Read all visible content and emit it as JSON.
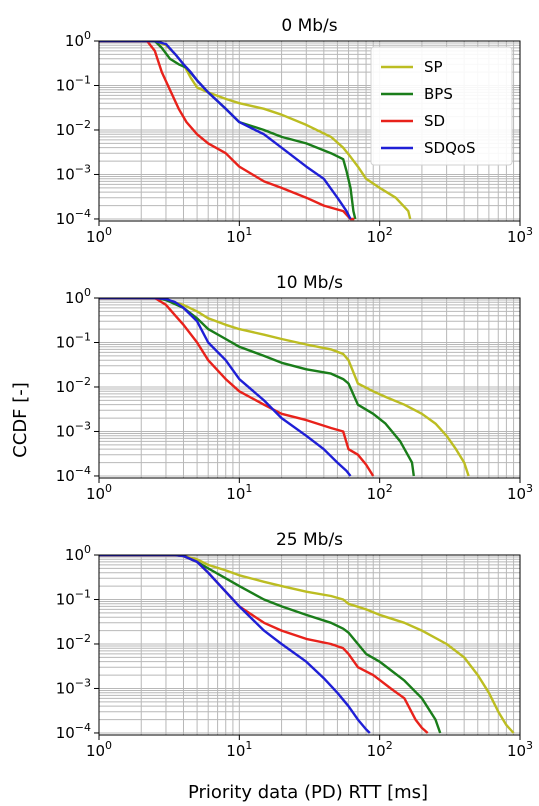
{
  "figure": {
    "ylabel": "CCDF [-]",
    "xlabel": "Priority data (PD) RTT [ms]"
  },
  "colors": {
    "SP": "#bcbd22",
    "BPS": "#1a7d1a",
    "SD": "#e8221b",
    "SDQoS": "#1f1fd6"
  },
  "chart_data": [
    {
      "type": "line",
      "title": "0 Mb/s",
      "xscale": "log",
      "yscale": "log",
      "xlim": [
        1,
        1000
      ],
      "ylim": [
        9e-05,
        1
      ],
      "grid": true,
      "legend_position": "top-right",
      "x_ticks": [
        "10^0",
        "10^1",
        "10^2",
        "10^3"
      ],
      "y_ticks": [
        "10^0",
        "10^-1",
        "10^-2",
        "10^-3",
        "10^-4"
      ],
      "series": [
        {
          "name": "SP",
          "x": [
            1,
            2.5,
            3.0,
            3.5,
            4.0,
            4.5,
            5.0,
            6,
            8,
            10,
            15,
            20,
            30,
            45,
            55,
            62,
            70,
            80,
            100,
            130,
            160,
            165
          ],
          "y": [
            1,
            1,
            0.8,
            0.5,
            0.3,
            0.15,
            0.09,
            0.07,
            0.05,
            0.04,
            0.03,
            0.022,
            0.013,
            0.007,
            0.004,
            0.0025,
            0.0015,
            0.0008,
            0.0005,
            0.0003,
            0.00015,
            0.0001
          ]
        },
        {
          "name": "BPS",
          "x": [
            1,
            2.5,
            2.8,
            3.2,
            3.7,
            4.2,
            5.0,
            6,
            8,
            10,
            15,
            20,
            30,
            45,
            55,
            58,
            62,
            65,
            67
          ],
          "y": [
            1,
            1,
            0.7,
            0.4,
            0.3,
            0.25,
            0.13,
            0.07,
            0.03,
            0.015,
            0.01,
            0.007,
            0.005,
            0.003,
            0.0022,
            0.0012,
            0.0005,
            0.00015,
            0.0001
          ]
        },
        {
          "name": "SD",
          "x": [
            1,
            2.2,
            2.5,
            2.8,
            3.2,
            3.7,
            4.2,
            5,
            6,
            8,
            10,
            15,
            20,
            30,
            40,
            55,
            62,
            66
          ],
          "y": [
            1,
            1,
            0.6,
            0.2,
            0.08,
            0.03,
            0.015,
            0.008,
            0.005,
            0.003,
            0.0015,
            0.0007,
            0.0005,
            0.0003,
            0.0002,
            0.00015,
            0.0001,
            0.0001
          ]
        },
        {
          "name": "SDQoS",
          "x": [
            1,
            2.5,
            3.0,
            3.5,
            4.0,
            4.5,
            5,
            6,
            8,
            10,
            15,
            20,
            30,
            40,
            50,
            58,
            62
          ],
          "y": [
            1,
            1,
            0.85,
            0.5,
            0.3,
            0.2,
            0.13,
            0.07,
            0.03,
            0.015,
            0.008,
            0.004,
            0.0015,
            0.0008,
            0.0003,
            0.00015,
            0.0001
          ]
        }
      ]
    },
    {
      "type": "line",
      "title": "10 Mb/s",
      "xscale": "log",
      "yscale": "log",
      "xlim": [
        1,
        1000
      ],
      "ylim": [
        9e-05,
        1
      ],
      "grid": true,
      "x_ticks": [
        "10^0",
        "10^1",
        "10^2",
        "10^3"
      ],
      "y_ticks": [
        "10^0",
        "10^-1",
        "10^-2",
        "10^-3",
        "10^-4"
      ],
      "series": [
        {
          "name": "SP",
          "x": [
            1,
            2.5,
            3,
            4,
            5,
            6,
            8,
            10,
            15,
            20,
            30,
            45,
            55,
            60,
            70,
            90,
            110,
            150,
            200,
            250,
            300,
            350,
            400,
            430
          ],
          "y": [
            1,
            1,
            0.9,
            0.7,
            0.5,
            0.35,
            0.25,
            0.2,
            0.15,
            0.12,
            0.09,
            0.07,
            0.055,
            0.04,
            0.012,
            0.008,
            0.006,
            0.004,
            0.0025,
            0.0015,
            0.0008,
            0.0004,
            0.0002,
            0.0001
          ]
        },
        {
          "name": "BPS",
          "x": [
            1,
            2.5,
            3,
            4,
            5,
            6,
            8,
            10,
            15,
            20,
            30,
            45,
            55,
            60,
            70,
            90,
            110,
            140,
            170,
            175
          ],
          "y": [
            1,
            1,
            0.9,
            0.6,
            0.35,
            0.2,
            0.12,
            0.08,
            0.05,
            0.035,
            0.025,
            0.02,
            0.015,
            0.012,
            0.004,
            0.0025,
            0.0015,
            0.0006,
            0.0002,
            0.0001
          ]
        },
        {
          "name": "SD",
          "x": [
            1,
            2.5,
            3,
            3.5,
            4,
            5,
            6,
            8,
            10,
            15,
            20,
            30,
            45,
            55,
            60,
            70,
            80,
            90
          ],
          "y": [
            1,
            1,
            0.7,
            0.4,
            0.25,
            0.1,
            0.04,
            0.015,
            0.008,
            0.004,
            0.0025,
            0.0018,
            0.0012,
            0.001,
            0.0004,
            0.0003,
            0.00018,
            0.0001
          ]
        },
        {
          "name": "SDQoS",
          "x": [
            1,
            2.5,
            3,
            3.5,
            4,
            5,
            6,
            8,
            10,
            15,
            20,
            30,
            40,
            50,
            58,
            62
          ],
          "y": [
            1,
            1,
            0.95,
            0.8,
            0.6,
            0.3,
            0.1,
            0.04,
            0.015,
            0.005,
            0.002,
            0.0008,
            0.0004,
            0.0002,
            0.00013,
            0.0001
          ]
        }
      ]
    },
    {
      "type": "line",
      "title": "25 Mb/s",
      "xscale": "log",
      "yscale": "log",
      "xlim": [
        1,
        1000
      ],
      "ylim": [
        9e-05,
        1
      ],
      "grid": true,
      "x_ticks": [
        "10^0",
        "10^1",
        "10^2",
        "10^3"
      ],
      "y_ticks": [
        "10^0",
        "10^-1",
        "10^-2",
        "10^-3",
        "10^-4"
      ],
      "series": [
        {
          "name": "SP",
          "x": [
            1,
            3.5,
            4,
            5,
            6,
            8,
            10,
            15,
            20,
            30,
            45,
            55,
            60,
            80,
            100,
            150,
            200,
            300,
            400,
            500,
            600,
            700,
            800,
            900
          ],
          "y": [
            1,
            1,
            0.95,
            0.8,
            0.6,
            0.45,
            0.35,
            0.25,
            0.2,
            0.15,
            0.12,
            0.1,
            0.08,
            0.06,
            0.045,
            0.03,
            0.02,
            0.01,
            0.005,
            0.002,
            0.0008,
            0.0003,
            0.00015,
            0.0001
          ]
        },
        {
          "name": "BPS",
          "x": [
            1,
            3.5,
            4,
            5,
            6,
            8,
            10,
            15,
            20,
            30,
            45,
            55,
            60,
            70,
            80,
            100,
            150,
            200,
            250,
            270
          ],
          "y": [
            1,
            1,
            0.95,
            0.7,
            0.5,
            0.3,
            0.2,
            0.1,
            0.07,
            0.045,
            0.03,
            0.022,
            0.018,
            0.01,
            0.006,
            0.004,
            0.0015,
            0.0006,
            0.0002,
            0.0001
          ]
        },
        {
          "name": "SD",
          "x": [
            1,
            3.5,
            4,
            5,
            6,
            8,
            10,
            15,
            20,
            30,
            45,
            55,
            60,
            70,
            90,
            120,
            150,
            180,
            200,
            220
          ],
          "y": [
            1,
            1,
            0.95,
            0.7,
            0.4,
            0.15,
            0.07,
            0.03,
            0.02,
            0.013,
            0.01,
            0.008,
            0.006,
            0.003,
            0.002,
            0.001,
            0.0006,
            0.0002,
            0.00013,
            0.0001
          ]
        },
        {
          "name": "SDQoS",
          "x": [
            1,
            3.5,
            4,
            5,
            6,
            8,
            10,
            15,
            20,
            30,
            40,
            50,
            60,
            70,
            80,
            85
          ],
          "y": [
            1,
            1,
            0.95,
            0.7,
            0.4,
            0.15,
            0.07,
            0.02,
            0.01,
            0.004,
            0.0017,
            0.0008,
            0.0004,
            0.0002,
            0.00012,
            0.0001
          ]
        }
      ]
    }
  ]
}
